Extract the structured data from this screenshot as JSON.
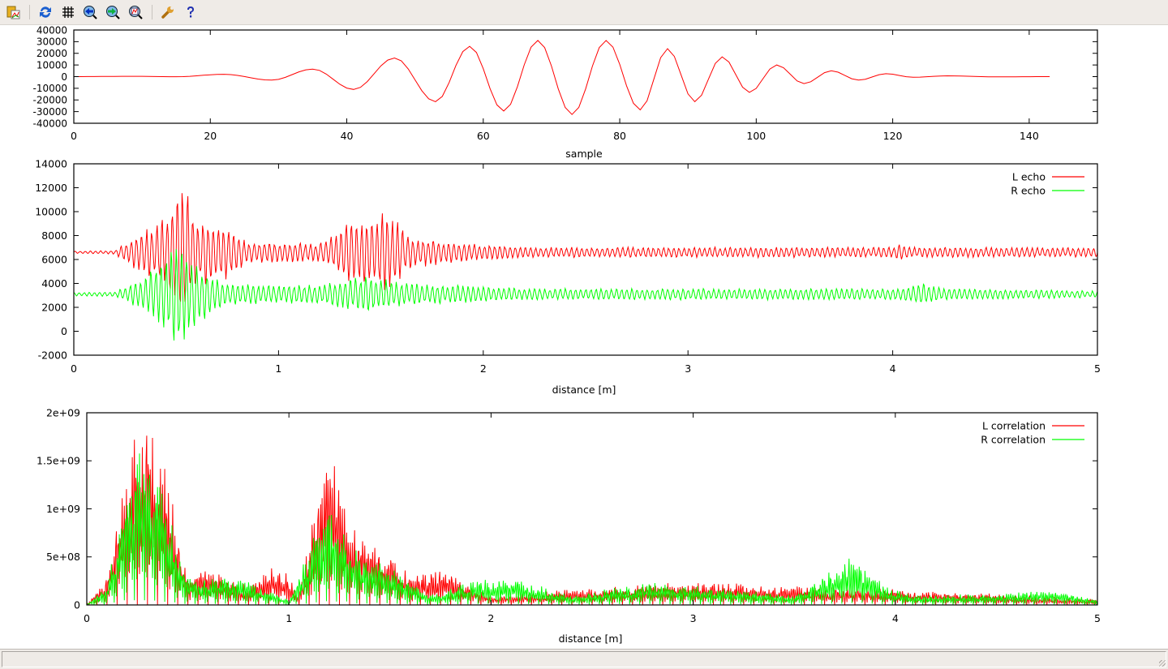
{
  "toolbar": {
    "items": [
      {
        "icon": "copy-to-clipboard-icon"
      },
      {
        "icon": "replot-icon"
      },
      {
        "icon": "grid-icon"
      },
      {
        "icon": "zoom-previous-icon"
      },
      {
        "icon": "zoom-next-icon"
      },
      {
        "icon": "autoscale-icon"
      },
      {
        "icon": "options-wrench-icon"
      },
      {
        "icon": "help-icon"
      }
    ]
  },
  "colors": {
    "red": "#ff0000",
    "green": "#00ff00",
    "background": "#ffffff",
    "toolbar": "#efebe7"
  },
  "chart_data": [
    {
      "type": "line",
      "xlabel": "sample",
      "ylabel": "",
      "xlim": [
        0,
        150
      ],
      "ylim": [
        -40000,
        40000
      ],
      "xticks": [
        "0",
        "20",
        "40",
        "60",
        "80",
        "100",
        "120",
        "140"
      ],
      "yticks": [
        "-40000",
        "-30000",
        "-20000",
        "-10000",
        "0",
        "10000",
        "20000",
        "30000",
        "40000"
      ],
      "grid": false,
      "legend": "none",
      "series": [
        {
          "color": "#ff0000",
          "representation": "extrema (sample, value)",
          "points": [
            [
              0,
              0
            ],
            [
              9,
              300
            ],
            [
              15,
              -100
            ],
            [
              22,
              2000
            ],
            [
              29,
              -3000
            ],
            [
              35,
              6500
            ],
            [
              41,
              -11000
            ],
            [
              47,
              16000
            ],
            [
              53,
              -21500
            ],
            [
              58,
              26000
            ],
            [
              63,
              -29500
            ],
            [
              68,
              31000
            ],
            [
              73,
              -32500
            ],
            [
              78,
              31000
            ],
            [
              83,
              -28500
            ],
            [
              87,
              24000
            ],
            [
              91,
              -21500
            ],
            [
              95,
              17000
            ],
            [
              99,
              -13500
            ],
            [
              103,
              10000
            ],
            [
              107,
              -6000
            ],
            [
              111,
              5000
            ],
            [
              115,
              -3000
            ],
            [
              119,
              2500
            ],
            [
              123,
              -500
            ],
            [
              128,
              700
            ],
            [
              135,
              -200
            ],
            [
              143,
              0
            ]
          ]
        }
      ]
    },
    {
      "type": "line",
      "xlabel": "distance [m]",
      "ylabel": "",
      "xlim": [
        0,
        5
      ],
      "ylim": [
        -2000,
        14000
      ],
      "xticks": [
        "0",
        "1",
        "2",
        "3",
        "4",
        "5"
      ],
      "yticks": [
        "-2000",
        "0",
        "2000",
        "4000",
        "6000",
        "8000",
        "10000",
        "12000",
        "14000"
      ],
      "grid": false,
      "legend": "top-right",
      "series": [
        {
          "name": "L echo",
          "color": "#ff0000",
          "baseline": 6600,
          "period_m": 0.025,
          "envelope": [
            [
              0,
              100
            ],
            [
              0.2,
              150
            ],
            [
              0.3,
              1500
            ],
            [
              0.45,
              3000
            ],
            [
              0.53,
              6800
            ],
            [
              0.6,
              3000
            ],
            [
              0.75,
              2300
            ],
            [
              0.85,
              900
            ],
            [
              1.2,
              800
            ],
            [
              1.35,
              2600
            ],
            [
              1.55,
              3600
            ],
            [
              1.62,
              1500
            ],
            [
              1.8,
              1000
            ],
            [
              2.2,
              450
            ],
            [
              4.0,
              450
            ],
            [
              4.02,
              700
            ],
            [
              4.1,
              450
            ],
            [
              5,
              400
            ]
          ]
        },
        {
          "name": "R echo",
          "color": "#00ff00",
          "baseline": 3100,
          "period_m": 0.025,
          "envelope": [
            [
              0,
              150
            ],
            [
              0.2,
              200
            ],
            [
              0.35,
              1500
            ],
            [
              0.53,
              4800
            ],
            [
              0.6,
              2600
            ],
            [
              0.75,
              900
            ],
            [
              1.2,
              800
            ],
            [
              1.45,
              1700
            ],
            [
              1.6,
              1000
            ],
            [
              2.2,
              500
            ],
            [
              4.0,
              500
            ],
            [
              4.15,
              1000
            ],
            [
              4.25,
              500
            ],
            [
              5,
              300
            ]
          ]
        }
      ]
    },
    {
      "type": "line",
      "xlabel": "distance [m]",
      "ylabel": "",
      "xlim": [
        0,
        5
      ],
      "ylim": [
        0,
        2000000000
      ],
      "xticks": [
        "0",
        "1",
        "2",
        "3",
        "4",
        "5"
      ],
      "yticks": [
        "0",
        "5e+08",
        "1e+09",
        "1.5e+09",
        "2e+09"
      ],
      "grid": false,
      "legend": "top-right",
      "series": [
        {
          "name": "L correlation",
          "color": "#ff0000",
          "period_m": 0.02,
          "envelope": [
            [
              0,
              10000000.0
            ],
            [
              0.1,
              300000000.0
            ],
            [
              0.2,
              1500000000.0
            ],
            [
              0.25,
              2000000000.0
            ],
            [
              0.3,
              2000000000.0
            ],
            [
              0.4,
              1400000000.0
            ],
            [
              0.5,
              300000000.0
            ],
            [
              0.6,
              420000000.0
            ],
            [
              0.8,
              200000000.0
            ],
            [
              0.95,
              460000000.0
            ],
            [
              1.05,
              120000000.0
            ],
            [
              1.15,
              1300000000.0
            ],
            [
              1.2,
              1750000000.0
            ],
            [
              1.3,
              900000000.0
            ],
            [
              1.4,
              700000000.0
            ],
            [
              1.5,
              540000000.0
            ],
            [
              1.6,
              300000000.0
            ],
            [
              1.75,
              400000000.0
            ],
            [
              2.0,
              100000000.0
            ],
            [
              2.6,
              200000000.0
            ],
            [
              3.1,
              250000000.0
            ],
            [
              3.4,
              200000000.0
            ],
            [
              3.8,
              200000000.0
            ],
            [
              4.1,
              150000000.0
            ],
            [
              4.5,
              120000000.0
            ],
            [
              5,
              60000000.0
            ]
          ]
        },
        {
          "name": "R correlation",
          "color": "#00ff00",
          "period_m": 0.02,
          "envelope": [
            [
              0,
              10000000.0
            ],
            [
              0.1,
              200000000.0
            ],
            [
              0.25,
              1850000000.0
            ],
            [
              0.35,
              1400000000.0
            ],
            [
              0.5,
              300000000.0
            ],
            [
              0.75,
              300000000.0
            ],
            [
              1.0,
              50000000.0
            ],
            [
              1.2,
              1150000000.0
            ],
            [
              1.35,
              550000000.0
            ],
            [
              1.5,
              400000000.0
            ],
            [
              1.7,
              100000000.0
            ],
            [
              1.9,
              260000000.0
            ],
            [
              2.1,
              300000000.0
            ],
            [
              2.4,
              100000000.0
            ],
            [
              2.8,
              250000000.0
            ],
            [
              3.5,
              100000000.0
            ],
            [
              3.8,
              550000000.0
            ],
            [
              3.95,
              200000000.0
            ],
            [
              4.1,
              100000000.0
            ],
            [
              4.5,
              120000000.0
            ],
            [
              4.8,
              160000000.0
            ],
            [
              5,
              50000000.0
            ]
          ]
        }
      ]
    }
  ]
}
